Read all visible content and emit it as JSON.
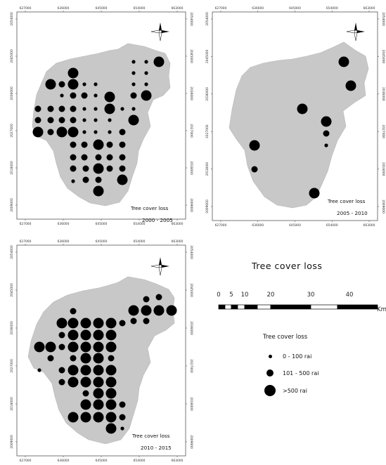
{
  "x_ticks": [
    "627000",
    "636000",
    "645000",
    "654000",
    "663000"
  ],
  "y_ticks": [
    "2054000",
    "2045000",
    "2036000",
    "2027000",
    "2018000",
    "2009000"
  ],
  "panels": [
    {
      "caption_title": "Tree cover loss",
      "caption_period": "2000 - 2005"
    },
    {
      "caption_title": "Tree cover loss",
      "caption_period": "2005 - 2010"
    },
    {
      "caption_title": "Tree cover loss",
      "caption_period": "2010 - 2015"
    }
  ],
  "legend": {
    "title": "Tree cover loss",
    "subtitle": "Tree cover loss",
    "classes": [
      {
        "label": "0 - 100 rai",
        "size": "small"
      },
      {
        "label": "101 - 500 rai",
        "size": "medium"
      },
      {
        "label": ">500 rai",
        "size": "large"
      }
    ],
    "scale": {
      "labels": [
        "0",
        "5",
        "10",
        "20",
        "30",
        "40"
      ],
      "unit": "Km"
    }
  },
  "north_arrow": {
    "icon": "compass-rose-icon"
  },
  "colors": {
    "region_fill": "#c8c8c8",
    "symbol": "#000000"
  }
}
